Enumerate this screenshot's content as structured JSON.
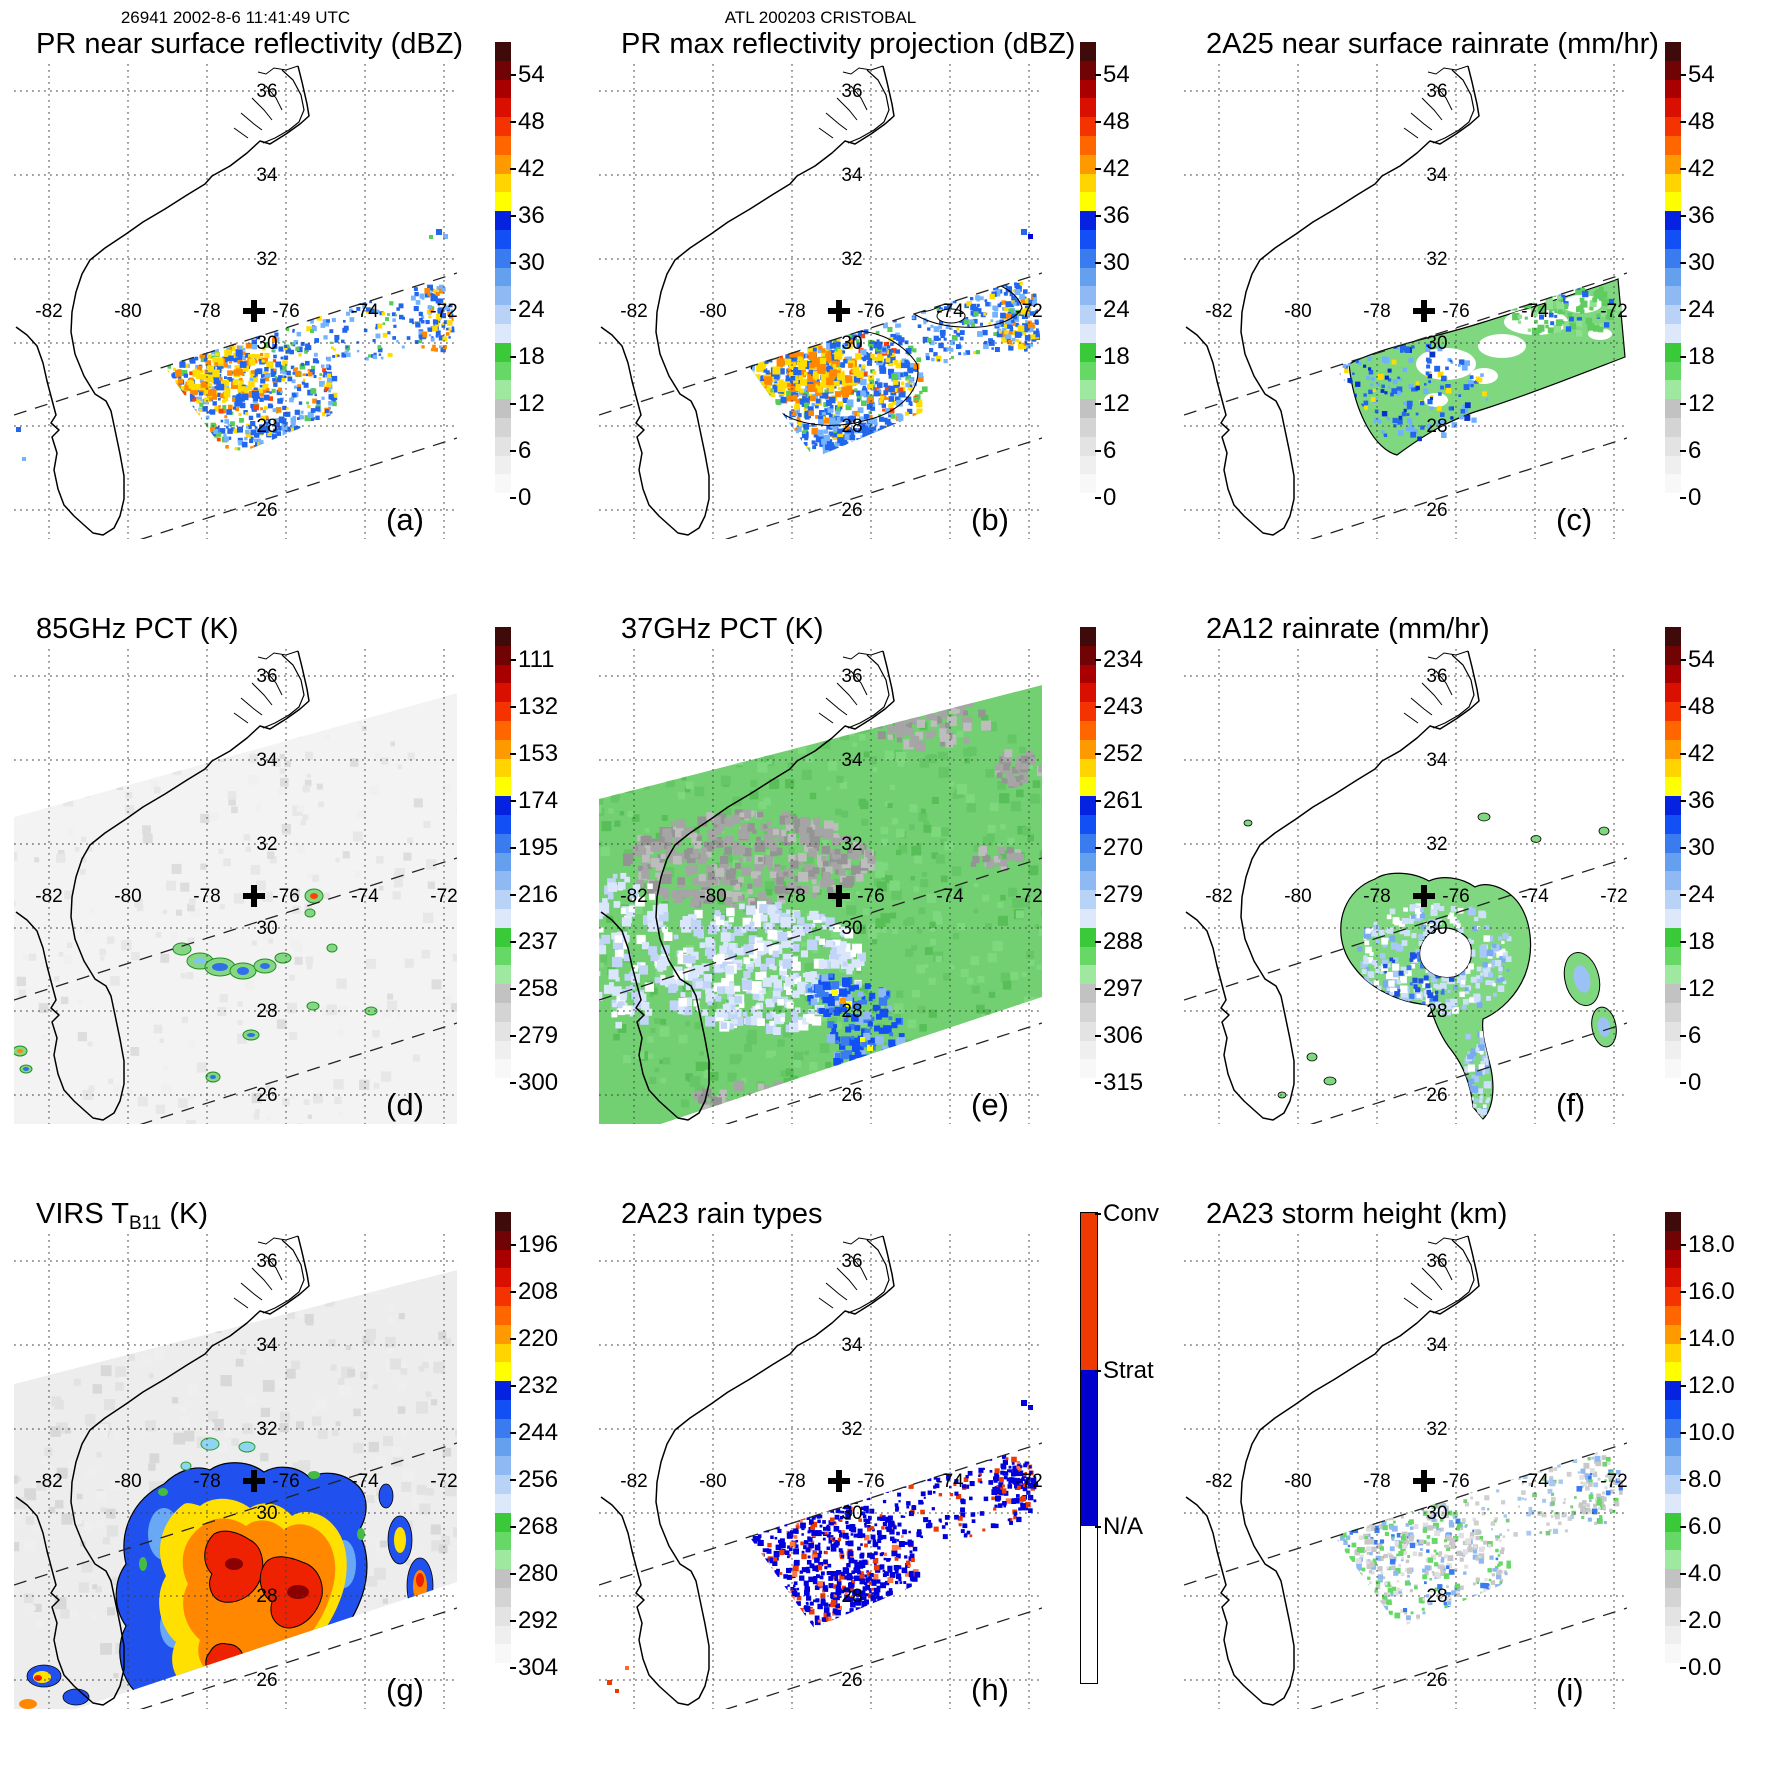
{
  "figure": {
    "orbit_time": "26941 2002-8-6 11:41:49 UTC",
    "storm_id": "ATL 200203 CRISTOBAL"
  },
  "map": {
    "lon_labels": [
      "-82",
      "-80",
      "-78",
      "-76",
      "-74",
      "-72"
    ],
    "lat_labels": [
      "36",
      "34",
      "32",
      "30",
      "28",
      "26"
    ],
    "storm_marker_symbol": "+"
  },
  "colorbar_colors_top_to_bottom": [
    "#3f0a0a",
    "#700404",
    "#a80000",
    "#d90f00",
    "#f53300",
    "#ff6600",
    "#ff9900",
    "#ffd400",
    "#ffff00",
    "#0522e0",
    "#1250f5",
    "#3a7cf0",
    "#64a0ee",
    "#8fb9f2",
    "#b9d3f7",
    "#dde9fb",
    "#39c939",
    "#66d866",
    "#9fe89f",
    "#c2c2c2",
    "#d4d4d4",
    "#e3e3e3",
    "#efefef",
    "#f8f8f8",
    "#ffffff"
  ],
  "panels": {
    "a": {
      "header": "26941 2002-8-6 11:41:49 UTC",
      "title": "PR near surface reflectivity (dBZ)",
      "letter": "(a)",
      "colorbar_ticks": [
        "54",
        "48",
        "42",
        "36",
        "30",
        "24",
        "18",
        "12",
        "6",
        "0"
      ]
    },
    "b": {
      "header": "ATL 200203 CRISTOBAL",
      "title": "PR max reflectivity projection (dBZ)",
      "letter": "(b)",
      "colorbar_ticks": [
        "54",
        "48",
        "42",
        "36",
        "30",
        "24",
        "18",
        "12",
        "6",
        "0"
      ]
    },
    "c": {
      "title": "2A25 near surface rainrate (mm/hr)",
      "letter": "(c)",
      "colorbar_ticks": [
        "54",
        "48",
        "42",
        "36",
        "30",
        "24",
        "18",
        "12",
        "6",
        "0"
      ]
    },
    "d": {
      "title": "85GHz PCT (K)",
      "letter": "(d)",
      "colorbar_ticks": [
        "111",
        "132",
        "153",
        "174",
        "195",
        "216",
        "237",
        "258",
        "279",
        "300"
      ]
    },
    "e": {
      "title": "37GHz PCT (K)",
      "letter": "(e)",
      "colorbar_ticks": [
        "234",
        "243",
        "252",
        "261",
        "270",
        "279",
        "288",
        "297",
        "306",
        "315"
      ]
    },
    "f": {
      "title": "2A12 rainrate (mm/hr)",
      "letter": "(f)",
      "colorbar_ticks": [
        "54",
        "48",
        "42",
        "36",
        "30",
        "24",
        "18",
        "12",
        "6",
        "0"
      ]
    },
    "g": {
      "title_prefix": "VIRS T",
      "title_sub": "B11",
      "title_suffix": " (K)",
      "letter": "(g)",
      "colorbar_ticks": [
        "196",
        "208",
        "220",
        "232",
        "244",
        "256",
        "268",
        "280",
        "292",
        "304"
      ]
    },
    "h": {
      "title": "2A23 rain types",
      "letter": "(h)",
      "categories": [
        "Conv",
        "Strat",
        "N/A"
      ],
      "category_colors": [
        "#ee3a00",
        "#0000cc",
        "#ffffff"
      ]
    },
    "i": {
      "title": "2A23 storm height (km)",
      "letter": "(i)",
      "colorbar_ticks": [
        "18.0",
        "16.0",
        "14.0",
        "12.0",
        "10.0",
        "8.0",
        "6.0",
        "4.0",
        "2.0",
        "0.0"
      ]
    }
  },
  "chart_data": {
    "type": "map-panels",
    "storm_id": "ATL 200203 CRISTOBAL",
    "orbit_time": "26941 2002-8-6 11:41:49 UTC",
    "lon_ticks": [
      -82,
      -80,
      -78,
      -76,
      -74,
      -72
    ],
    "lat_ticks": [
      36,
      34,
      32,
      30,
      28,
      26
    ],
    "panels": [
      {
        "panel": "(a)",
        "type": "heatmap",
        "title": "PR near surface reflectivity (dBZ)",
        "scale_ticks": [
          54,
          48,
          42,
          36,
          30,
          24,
          18,
          12,
          6,
          0
        ]
      },
      {
        "panel": "(b)",
        "type": "heatmap",
        "title": "PR max reflectivity projection (dBZ)",
        "scale_ticks": [
          54,
          48,
          42,
          36,
          30,
          24,
          18,
          12,
          6,
          0
        ]
      },
      {
        "panel": "(c)",
        "type": "heatmap",
        "title": "2A25 near surface rainrate (mm/hr)",
        "scale_ticks": [
          54,
          48,
          42,
          36,
          30,
          24,
          18,
          12,
          6,
          0
        ]
      },
      {
        "panel": "(d)",
        "type": "heatmap",
        "title": "85GHz PCT (K)",
        "scale_ticks": [
          111,
          132,
          153,
          174,
          195,
          216,
          237,
          258,
          279,
          300
        ]
      },
      {
        "panel": "(e)",
        "type": "heatmap",
        "title": "37GHz PCT (K)",
        "scale_ticks": [
          234,
          243,
          252,
          261,
          270,
          279,
          288,
          297,
          306,
          315
        ]
      },
      {
        "panel": "(f)",
        "type": "heatmap",
        "title": "2A12 rainrate (mm/hr)",
        "scale_ticks": [
          54,
          48,
          42,
          36,
          30,
          24,
          18,
          12,
          6,
          0
        ]
      },
      {
        "panel": "(g)",
        "type": "heatmap",
        "title": "VIRS TB11 (K)",
        "scale_ticks": [
          196,
          208,
          220,
          232,
          244,
          256,
          268,
          280,
          292,
          304
        ]
      },
      {
        "panel": "(h)",
        "type": "categorical-map",
        "title": "2A23 rain types",
        "categories": [
          "Conv",
          "Strat",
          "N/A"
        ]
      },
      {
        "panel": "(i)",
        "type": "heatmap",
        "title": "2A23 storm height (km)",
        "scale_ticks": [
          18.0,
          16.0,
          14.0,
          12.0,
          10.0,
          8.0,
          6.0,
          4.0,
          2.0,
          0.0
        ]
      }
    ]
  }
}
